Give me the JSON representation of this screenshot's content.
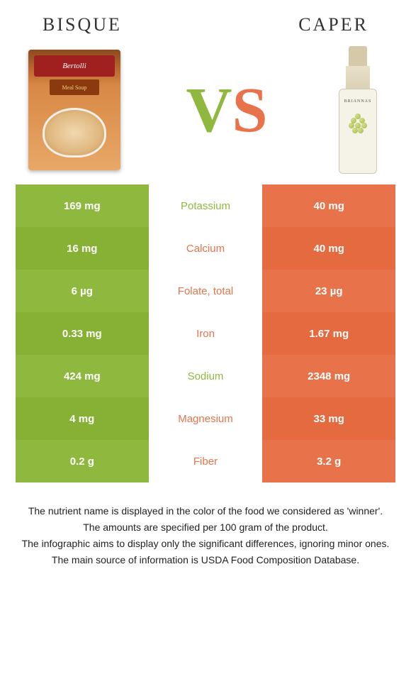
{
  "header": {
    "left_title": "BISQUE",
    "right_title": "CAPER"
  },
  "vs": {
    "v": "V",
    "s": "S"
  },
  "product_left": {
    "brand": "Bertolli",
    "sub": "Meal Soup"
  },
  "product_right": {
    "brand": "BRIANNAS"
  },
  "colors": {
    "left_bar": "#8fb93e",
    "right_bar": "#e8734a",
    "winner_left_text": "#8fb93e",
    "winner_right_text": "#e8734a",
    "left_bar_alt": "#86b135",
    "right_bar_alt": "#e56a40"
  },
  "nutrients": [
    {
      "name": "Potassium",
      "left": "169 mg",
      "right": "40 mg",
      "winner": "left"
    },
    {
      "name": "Calcium",
      "left": "16 mg",
      "right": "40 mg",
      "winner": "right"
    },
    {
      "name": "Folate, total",
      "left": "6 µg",
      "right": "23 µg",
      "winner": "right"
    },
    {
      "name": "Iron",
      "left": "0.33 mg",
      "right": "1.67 mg",
      "winner": "right"
    },
    {
      "name": "Sodium",
      "left": "424 mg",
      "right": "2348 mg",
      "winner": "left"
    },
    {
      "name": "Magnesium",
      "left": "4 mg",
      "right": "33 mg",
      "winner": "right"
    },
    {
      "name": "Fiber",
      "left": "0.2 g",
      "right": "3.2 g",
      "winner": "right"
    }
  ],
  "footer": {
    "line1": "The nutrient name is displayed in the color of the food we considered as 'winner'.",
    "line2": "The amounts are specified per 100 gram of the product.",
    "line3": "The infographic aims to display only the significant differences, ignoring minor ones.",
    "line4": "The main source of information is USDA Food Composition Database."
  }
}
